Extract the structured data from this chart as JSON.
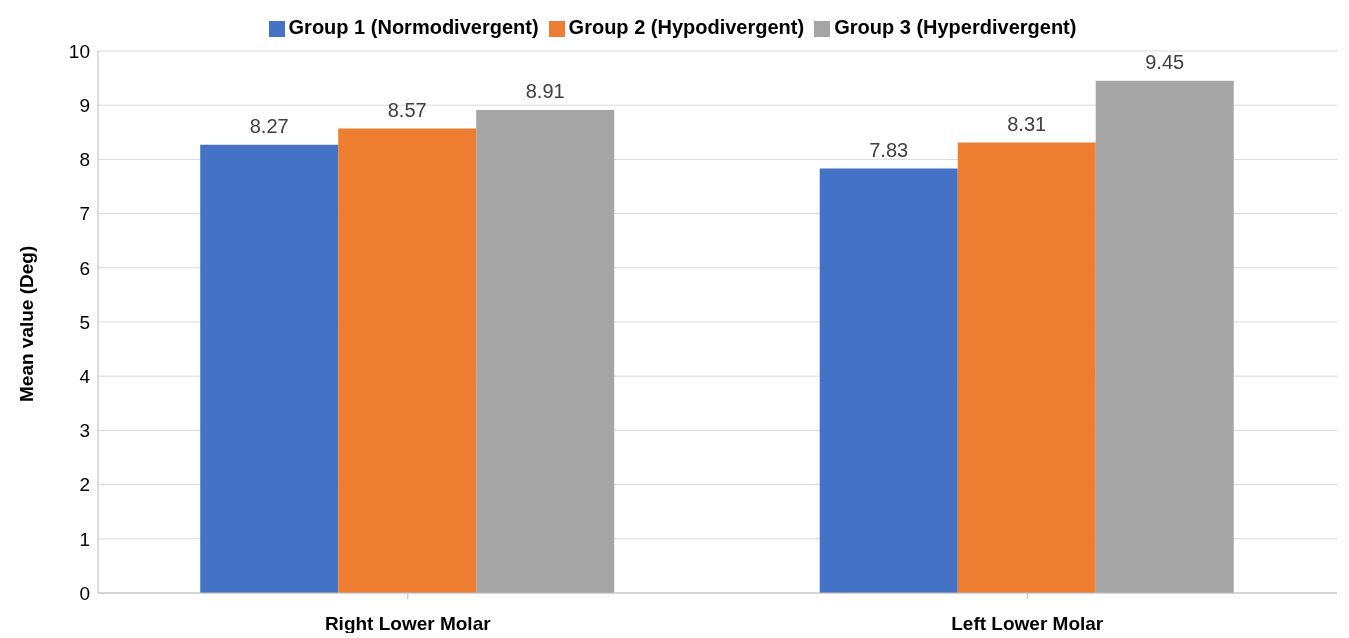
{
  "chart_data": {
    "type": "bar",
    "ylabel": "Mean value (Deg)",
    "categories": [
      "Right Lower Molar",
      "Left Lower Molar"
    ],
    "series": [
      {
        "name": "Group 1 (Normodivergent)",
        "color": "#4472c4",
        "values": [
          8.27,
          7.83
        ]
      },
      {
        "name": "Group 2 (Hypodivergent)",
        "color": "#ed7d31",
        "values": [
          8.57,
          8.31
        ]
      },
      {
        "name": "Group 3 (Hyperdivergent)",
        "color": "#a5a5a5",
        "values": [
          8.91,
          9.45
        ]
      }
    ],
    "ylim": [
      0,
      10
    ],
    "yticks": [
      0,
      1,
      2,
      3,
      4,
      5,
      6,
      7,
      8,
      9,
      10
    ],
    "grid": "y",
    "legend": "top",
    "data_labels": true
  }
}
